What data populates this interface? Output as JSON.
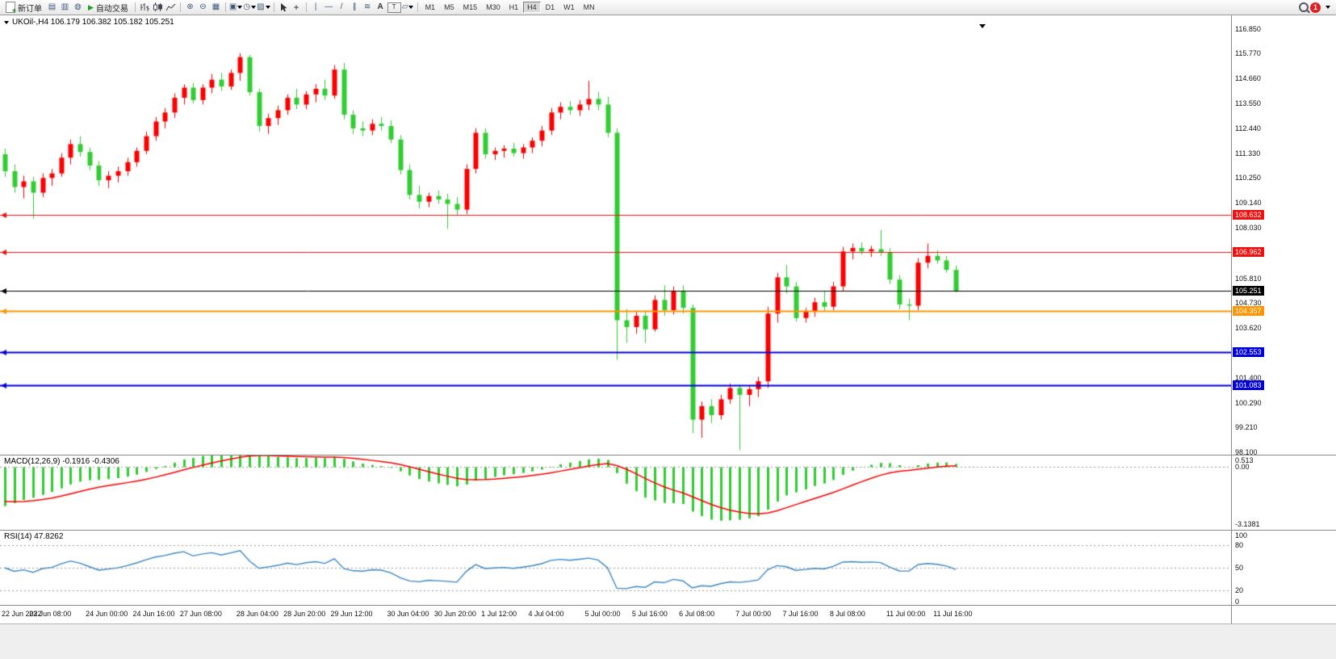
{
  "toolbar": {
    "new_order": "新订单",
    "auto_trading": "自动交易",
    "timeframes": [
      "M1",
      "M5",
      "M15",
      "M30",
      "H1",
      "H4",
      "D1",
      "W1",
      "MN"
    ],
    "active_timeframe": "H4",
    "notification_count": "1",
    "text_tool": "A",
    "label_tool": "T"
  },
  "chart": {
    "symbol_header": "UKOil-,H4 106.179 106.382 105.182 105.251",
    "macd_label": "MACD(12,26,9) -0.1916 -0.4306",
    "rsi_label": "RSI(14) 47.8262",
    "price_ticks": [
      "116.850",
      "115.770",
      "114.660",
      "113.550",
      "112.440",
      "111.330",
      "110.250",
      "109.140",
      "108.030",
      "106.920",
      "105.810",
      "104.730",
      "103.620",
      "102.510",
      "101.400",
      "100.290",
      "99.210",
      "98.100"
    ],
    "macd_ticks": [
      "0.513",
      "0.00",
      "-3.1381"
    ],
    "rsi_ticks": [
      "100",
      "80",
      "50",
      "20",
      "0"
    ],
    "date_labels": [
      "22 Jun 2022",
      "23 Jun 08:00",
      "24 Jun 00:00",
      "24 Jun 16:00",
      "27 Jun 08:00",
      "28 Jun 04:00",
      "28 Jun 20:00",
      "29 Jun 12:00",
      "30 Jun 04:00",
      "30 Jun 20:00",
      "1 Jul 12:00",
      "4 Jul 04:00",
      "5 Jul 00:00",
      "5 Jul 16:00",
      "6 Jul 08:00",
      "7 Jul 00:00",
      "7 Jul 16:00",
      "8 Jul 08:00",
      "11 Jul 00:00",
      "11 Jul 16:00"
    ],
    "hlines": [
      {
        "label": "108.632",
        "value": 108.632,
        "color": "#ee1111",
        "width": 1
      },
      {
        "label": "106.962",
        "value": 106.962,
        "color": "#ee1111",
        "width": 1
      },
      {
        "label": "105.251",
        "value": 105.251,
        "color": "#000000",
        "width": 1
      },
      {
        "label": "104.357",
        "value": 104.357,
        "color": "#ff9500",
        "width": 2
      },
      {
        "label": "102.553",
        "value": 102.553,
        "color": "#0000dd",
        "width": 2
      },
      {
        "label": "101.083",
        "value": 101.083,
        "color": "#0000dd",
        "width": 2
      }
    ],
    "colors": {
      "bull": "#ff0000",
      "bear": "#32cd32",
      "macd_hist": "#32cd32",
      "macd_signal": "#ff0000",
      "rsi_line": "#3b87c8",
      "grid": "#9a9a9a",
      "background": "#ffffff",
      "axis_text": "#111111"
    }
  },
  "chart_data": {
    "type": "candlestick",
    "symbol": "UKOil-",
    "timeframe": "H4",
    "last_bar_ohlc": [
      106.179,
      106.382,
      105.182,
      105.251
    ],
    "price_range": [
      98.0,
      117.45
    ],
    "macd_range": [
      -3.45,
      0.62
    ],
    "macd": {
      "fast": 12,
      "slow": 26,
      "signal": 9,
      "current_macd": -0.1916,
      "current_signal": -0.4306
    },
    "rsi": {
      "period": 14,
      "current": 47.8262,
      "levels": [
        80,
        50,
        20
      ],
      "range": [
        0,
        100
      ]
    },
    "levels": [
      108.632,
      106.962,
      105.251,
      104.357,
      102.553,
      101.083
    ],
    "candles": [
      [
        111.3,
        111.55,
        110.3,
        110.55
      ],
      [
        110.55,
        110.85,
        109.6,
        109.85
      ],
      [
        109.85,
        110.35,
        109.35,
        110.1
      ],
      [
        110.1,
        110.3,
        108.45,
        109.6
      ],
      [
        109.6,
        110.45,
        109.4,
        110.25
      ],
      [
        110.25,
        110.65,
        109.9,
        110.45
      ],
      [
        110.45,
        111.35,
        110.3,
        111.15
      ],
      [
        111.15,
        111.95,
        110.85,
        111.75
      ],
      [
        111.75,
        112.1,
        111.2,
        111.4
      ],
      [
        111.4,
        111.6,
        110.6,
        110.8
      ],
      [
        110.8,
        111.0,
        109.9,
        110.15
      ],
      [
        110.15,
        110.55,
        109.8,
        110.35
      ],
      [
        110.35,
        110.75,
        110.05,
        110.55
      ],
      [
        110.55,
        111.15,
        110.35,
        110.95
      ],
      [
        110.95,
        111.6,
        110.75,
        111.45
      ],
      [
        111.45,
        112.3,
        111.3,
        112.1
      ],
      [
        112.1,
        112.95,
        111.9,
        112.75
      ],
      [
        112.75,
        113.35,
        112.45,
        113.15
      ],
      [
        113.15,
        114.0,
        112.9,
        113.8
      ],
      [
        113.8,
        114.4,
        113.5,
        114.25
      ],
      [
        114.25,
        114.45,
        113.55,
        113.7
      ],
      [
        113.7,
        114.4,
        113.5,
        114.25
      ],
      [
        114.25,
        114.85,
        114.0,
        114.6
      ],
      [
        114.6,
        114.9,
        114.1,
        114.3
      ],
      [
        114.3,
        115.05,
        114.15,
        114.9
      ],
      [
        114.9,
        115.77,
        114.55,
        115.6
      ],
      [
        115.6,
        115.7,
        113.9,
        114.05
      ],
      [
        114.05,
        114.2,
        112.3,
        112.55
      ],
      [
        112.55,
        113.1,
        112.2,
        112.9
      ],
      [
        112.9,
        113.45,
        112.6,
        113.25
      ],
      [
        113.25,
        113.95,
        113.05,
        113.8
      ],
      [
        113.8,
        114.2,
        113.3,
        113.5
      ],
      [
        113.5,
        114.1,
        113.3,
        113.95
      ],
      [
        113.95,
        114.4,
        113.6,
        114.2
      ],
      [
        114.2,
        114.6,
        113.7,
        113.9
      ],
      [
        113.9,
        115.25,
        113.75,
        115.05
      ],
      [
        115.05,
        115.35,
        112.85,
        113.05
      ],
      [
        113.05,
        113.25,
        112.2,
        112.45
      ],
      [
        112.45,
        112.75,
        112.1,
        112.35
      ],
      [
        112.35,
        112.85,
        112.15,
        112.65
      ],
      [
        112.65,
        112.95,
        112.35,
        112.55
      ],
      [
        112.55,
        112.8,
        111.8,
        111.95
      ],
      [
        111.95,
        112.15,
        110.4,
        110.6
      ],
      [
        110.6,
        110.85,
        109.3,
        109.5
      ],
      [
        109.5,
        109.9,
        108.9,
        109.2
      ],
      [
        109.2,
        109.6,
        108.95,
        109.45
      ],
      [
        109.45,
        109.7,
        109.1,
        109.3
      ],
      [
        109.3,
        109.55,
        108.0,
        109.1
      ],
      [
        109.1,
        109.4,
        108.6,
        108.85
      ],
      [
        108.85,
        110.85,
        108.65,
        110.65
      ],
      [
        110.65,
        112.45,
        110.45,
        112.25
      ],
      [
        112.25,
        112.45,
        111.1,
        111.3
      ],
      [
        111.3,
        111.6,
        111.05,
        111.45
      ],
      [
        111.45,
        111.7,
        111.15,
        111.55
      ],
      [
        111.55,
        111.8,
        111.2,
        111.35
      ],
      [
        111.35,
        111.75,
        111.1,
        111.6
      ],
      [
        111.6,
        112.05,
        111.35,
        111.9
      ],
      [
        111.9,
        112.55,
        111.65,
        112.35
      ],
      [
        112.35,
        113.35,
        112.15,
        113.15
      ],
      [
        113.15,
        113.6,
        112.85,
        113.4
      ],
      [
        113.4,
        113.65,
        113.05,
        113.25
      ],
      [
        113.25,
        113.7,
        113.0,
        113.5
      ],
      [
        113.5,
        114.55,
        113.25,
        113.75
      ],
      [
        113.75,
        114.05,
        113.25,
        113.5
      ],
      [
        113.5,
        113.85,
        112.05,
        112.25
      ],
      [
        112.25,
        112.45,
        102.2,
        103.95
      ],
      [
        103.95,
        104.45,
        102.95,
        103.65
      ],
      [
        103.65,
        104.35,
        103.35,
        104.15
      ],
      [
        104.15,
        104.4,
        102.95,
        103.55
      ],
      [
        103.55,
        105.05,
        103.45,
        104.85
      ],
      [
        104.85,
        105.5,
        104.15,
        104.4
      ],
      [
        104.4,
        105.45,
        104.2,
        105.25
      ],
      [
        105.25,
        105.5,
        104.25,
        104.5
      ],
      [
        104.5,
        104.65,
        98.95,
        99.55
      ],
      [
        99.55,
        100.35,
        98.75,
        100.15
      ],
      [
        100.15,
        100.45,
        99.4,
        99.75
      ],
      [
        99.75,
        100.65,
        99.55,
        100.45
      ],
      [
        100.45,
        101.15,
        100.25,
        100.95
      ],
      [
        100.95,
        101.1,
        98.2,
        100.65
      ],
      [
        100.65,
        101.05,
        100.15,
        100.9
      ],
      [
        100.9,
        101.45,
        100.55,
        101.25
      ],
      [
        101.25,
        104.55,
        100.95,
        104.25
      ],
      [
        104.25,
        106.05,
        103.85,
        105.85
      ],
      [
        105.85,
        106.4,
        105.15,
        105.45
      ],
      [
        105.45,
        105.65,
        103.9,
        104.05
      ],
      [
        104.05,
        104.5,
        103.85,
        104.35
      ],
      [
        104.35,
        104.95,
        104.1,
        104.75
      ],
      [
        104.75,
        105.25,
        104.35,
        104.55
      ],
      [
        104.55,
        105.65,
        104.4,
        105.45
      ],
      [
        105.45,
        107.2,
        105.25,
        107.0
      ],
      [
        107.0,
        107.35,
        106.65,
        107.15
      ],
      [
        107.15,
        107.4,
        106.85,
        107.0
      ],
      [
        107.0,
        107.25,
        106.75,
        107.1
      ],
      [
        107.1,
        107.95,
        106.8,
        106.95
      ],
      [
        106.95,
        107.15,
        105.55,
        105.75
      ],
      [
        105.75,
        105.95,
        104.45,
        104.65
      ],
      [
        104.65,
        104.9,
        103.95,
        104.6
      ],
      [
        104.6,
        106.7,
        104.4,
        106.5
      ],
      [
        106.5,
        107.35,
        106.25,
        106.8
      ],
      [
        106.8,
        107.05,
        106.45,
        106.6
      ],
      [
        106.6,
        106.8,
        106.05,
        106.18
      ],
      [
        106.179,
        106.382,
        105.182,
        105.251
      ]
    ]
  }
}
